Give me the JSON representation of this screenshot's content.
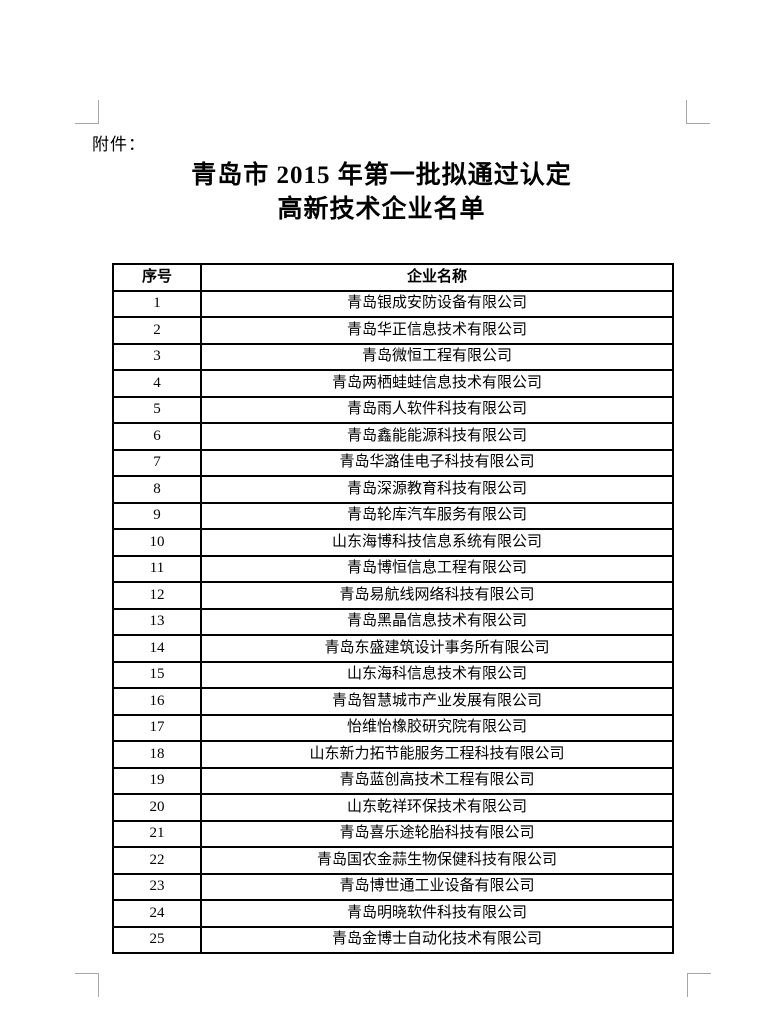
{
  "document": {
    "attachment_label": "附件：",
    "title_line1": "青岛市 2015 年第一批拟通过认定",
    "title_line2": "高新技术企业名单"
  },
  "table": {
    "headers": {
      "no": "序号",
      "name": "企业名称"
    },
    "rows": [
      {
        "no": "1",
        "name": "青岛银成安防设备有限公司"
      },
      {
        "no": "2",
        "name": "青岛华正信息技术有限公司"
      },
      {
        "no": "3",
        "name": "青岛微恒工程有限公司"
      },
      {
        "no": "4",
        "name": "青岛两栖蛙蛙信息技术有限公司"
      },
      {
        "no": "5",
        "name": "青岛雨人软件科技有限公司"
      },
      {
        "no": "6",
        "name": "青岛鑫能能源科技有限公司"
      },
      {
        "no": "7",
        "name": "青岛华潞佳电子科技有限公司"
      },
      {
        "no": "8",
        "name": "青岛深源教育科技有限公司"
      },
      {
        "no": "9",
        "name": "青岛轮库汽车服务有限公司"
      },
      {
        "no": "10",
        "name": "山东海博科技信息系统有限公司"
      },
      {
        "no": "11",
        "name": "青岛博恒信息工程有限公司"
      },
      {
        "no": "12",
        "name": "青岛易航线网络科技有限公司"
      },
      {
        "no": "13",
        "name": "青岛黑晶信息技术有限公司"
      },
      {
        "no": "14",
        "name": "青岛东盛建筑设计事务所有限公司"
      },
      {
        "no": "15",
        "name": "山东海科信息技术有限公司"
      },
      {
        "no": "16",
        "name": "青岛智慧城市产业发展有限公司"
      },
      {
        "no": "17",
        "name": "怡维怡橡胶研究院有限公司"
      },
      {
        "no": "18",
        "name": "山东新力拓节能服务工程科技有限公司"
      },
      {
        "no": "19",
        "name": "青岛蓝创高技术工程有限公司"
      },
      {
        "no": "20",
        "name": "山东乾祥环保技术有限公司"
      },
      {
        "no": "21",
        "name": "青岛喜乐途轮胎科技有限公司"
      },
      {
        "no": "22",
        "name": "青岛国农金蒜生物保健科技有限公司"
      },
      {
        "no": "23",
        "name": "青岛博世通工业设备有限公司"
      },
      {
        "no": "24",
        "name": "青岛明晓软件科技有限公司"
      },
      {
        "no": "25",
        "name": "青岛金博士自动化技术有限公司"
      }
    ]
  },
  "colors": {
    "text": "#000000",
    "table_border": "#000000",
    "margin_mark": "#a6a6a6",
    "page_background": "#ffffff"
  }
}
